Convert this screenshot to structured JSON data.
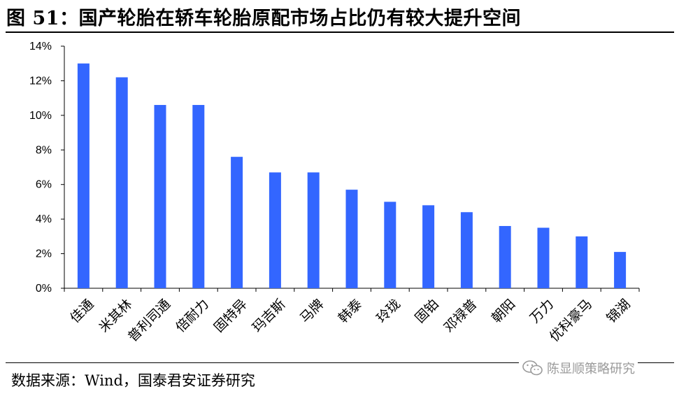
{
  "figure": {
    "title": "图 51：国产轮胎在轿车轮胎原配市场占比仍有较大提升空间",
    "source": "数据来源：Wind，国泰君安证券研究",
    "watermark": "陈显顺策略研究",
    "watermark_icon": "wechat-icon"
  },
  "colors": {
    "bar": "#3366ff",
    "axis": "#000000"
  },
  "chart_data": {
    "type": "bar",
    "title": "",
    "xlabel": "",
    "ylabel": "",
    "ylim": [
      0,
      14
    ],
    "yticks": [
      0,
      2,
      4,
      6,
      8,
      10,
      12,
      14
    ],
    "ytick_labels": [
      "0%",
      "2%",
      "4%",
      "6%",
      "8%",
      "10%",
      "12%",
      "14%"
    ],
    "y_unit": "%",
    "grid": false,
    "legend": "none",
    "categories": [
      "佳通",
      "米其林",
      "普利司通",
      "倍耐力",
      "固特异",
      "玛吉斯",
      "马牌",
      "韩泰",
      "玲珑",
      "固铂",
      "邓禄普",
      "朝阳",
      "万力",
      "优科豪马",
      "锦湖"
    ],
    "values": [
      13.0,
      12.2,
      10.6,
      10.6,
      7.6,
      6.7,
      6.7,
      5.7,
      5.0,
      4.8,
      4.4,
      3.6,
      3.5,
      3.0,
      2.1
    ]
  }
}
